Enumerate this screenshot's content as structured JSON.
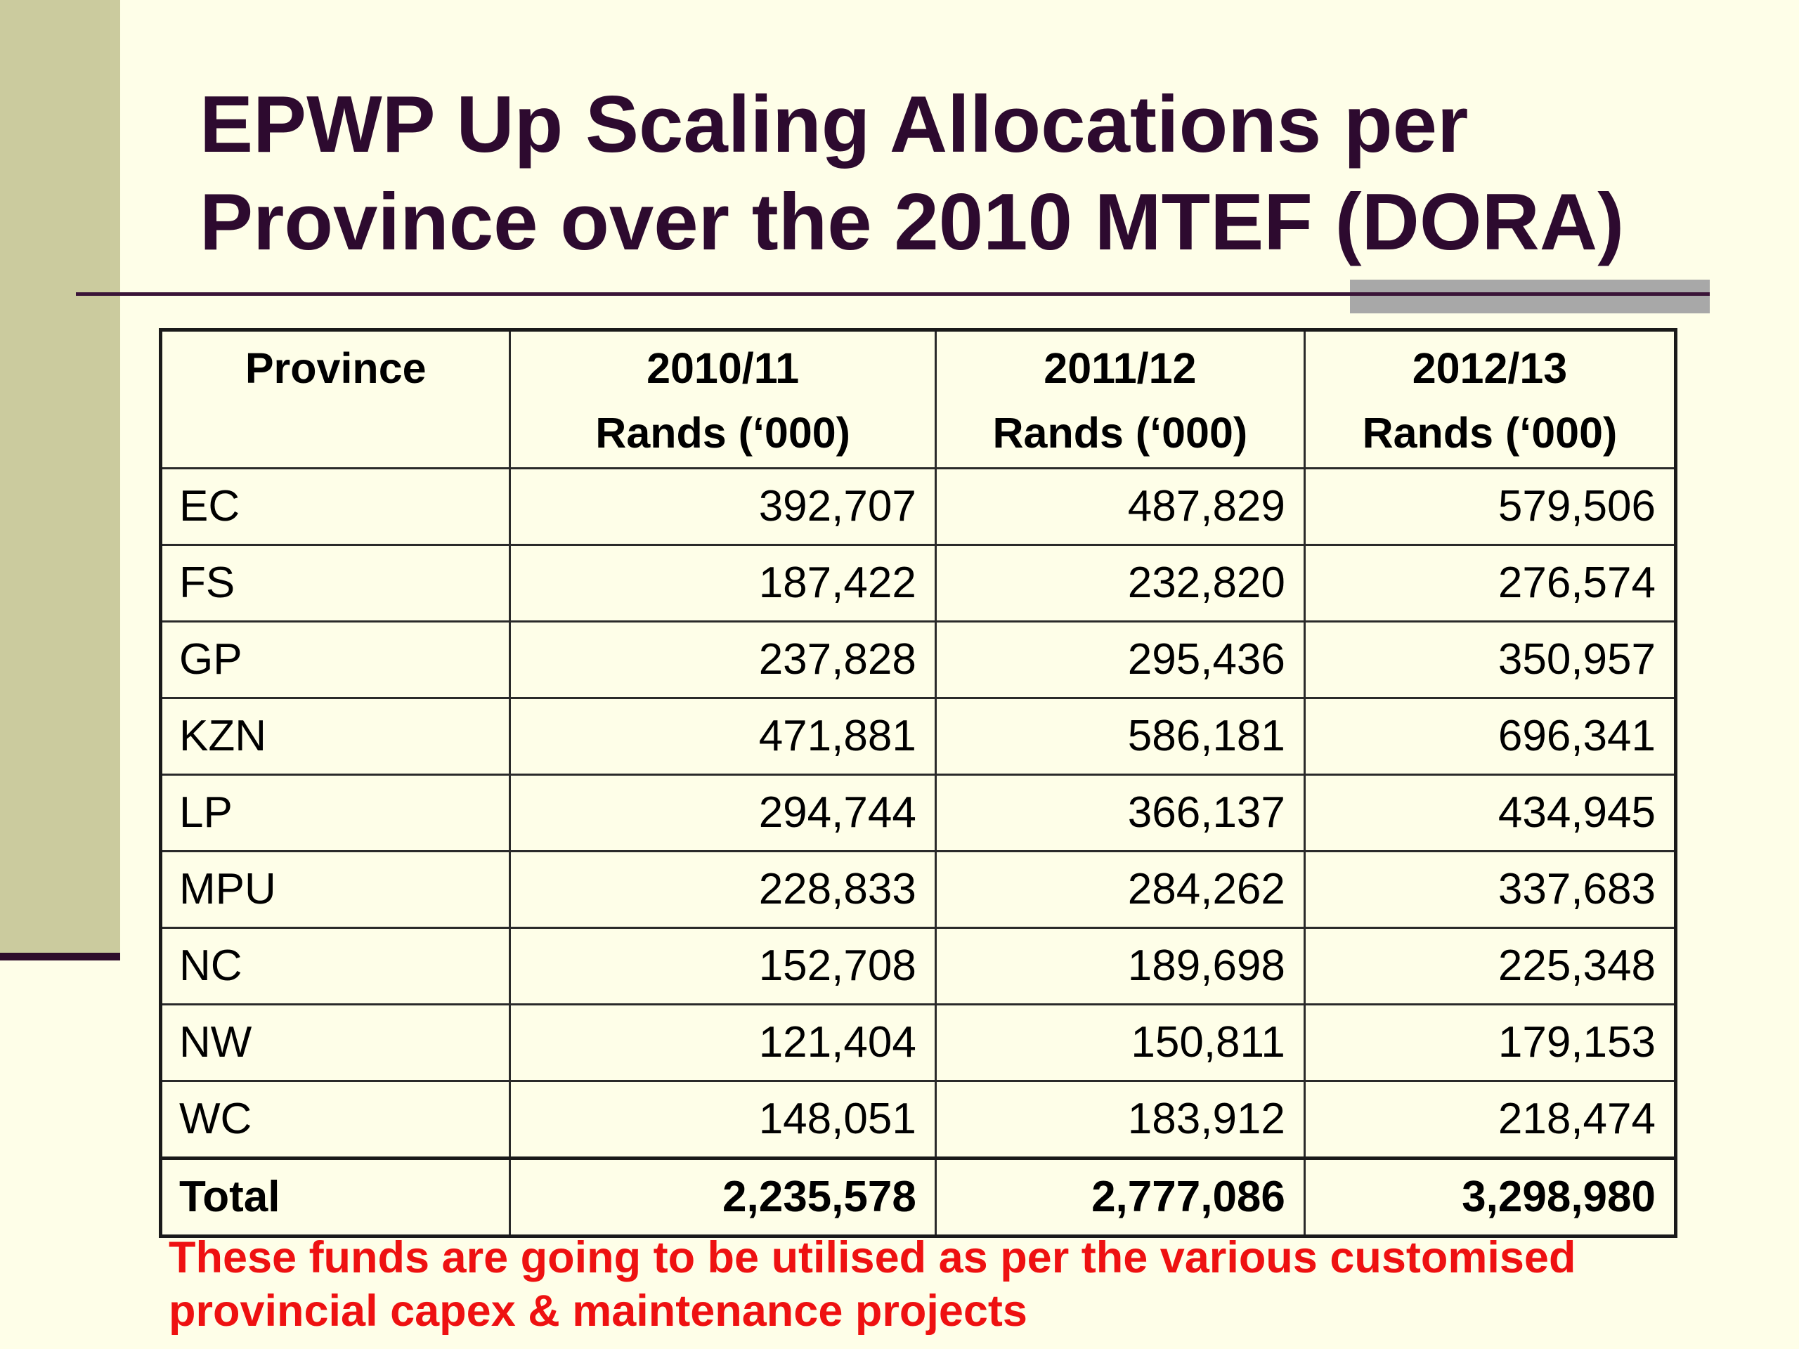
{
  "slide": {
    "title_lines": [
      "EPWP Up Scaling Allocations per",
      "Province over the 2010 MTEF (DORA)"
    ],
    "footnote_lines": [
      "These funds are going to be utilised as per the various customised",
      "provincial capex & maintenance projects"
    ],
    "colors": {
      "background": "#fefee8",
      "side_bar": "#cbcb9e",
      "title": "#2d0a2f",
      "rule": "#3a1438",
      "accent_block": "#a8a8a8",
      "footnote": "#ee1111"
    }
  },
  "table": {
    "headers": [
      {
        "line1": "Province",
        "line2": ""
      },
      {
        "line1": "2010/11",
        "line2": "Rands (‘000)"
      },
      {
        "line1": "2011/12",
        "line2": "Rands (‘000)"
      },
      {
        "line1": "2012/13",
        "line2": "Rands (‘000)"
      }
    ],
    "rows": [
      {
        "province": "EC",
        "y2010_11": "392,707",
        "y2011_12": "487,829",
        "y2012_13": "579,506"
      },
      {
        "province": "FS",
        "y2010_11": "187,422",
        "y2011_12": "232,820",
        "y2012_13": "276,574"
      },
      {
        "province": "GP",
        "y2010_11": "237,828",
        "y2011_12": "295,436",
        "y2012_13": "350,957"
      },
      {
        "province": "KZN",
        "y2010_11": "471,881",
        "y2011_12": "586,181",
        "y2012_13": "696,341"
      },
      {
        "province": "LP",
        "y2010_11": "294,744",
        "y2011_12": "366,137",
        "y2012_13": "434,945"
      },
      {
        "province": "MPU",
        "y2010_11": "228,833",
        "y2011_12": "284,262",
        "y2012_13": "337,683"
      },
      {
        "province": "NC",
        "y2010_11": "152,708",
        "y2011_12": "189,698",
        "y2012_13": "225,348"
      },
      {
        "province": "NW",
        "y2010_11": "121,404",
        "y2011_12": "150,811",
        "y2012_13": "179,153"
      },
      {
        "province": "WC",
        "y2010_11": "148,051",
        "y2011_12": "183,912",
        "y2012_13": "218,474"
      }
    ],
    "total": {
      "label": "Total",
      "y2010_11": "2,235,578",
      "y2011_12": "2,777,086",
      "y2012_13": "3,298,980"
    }
  }
}
